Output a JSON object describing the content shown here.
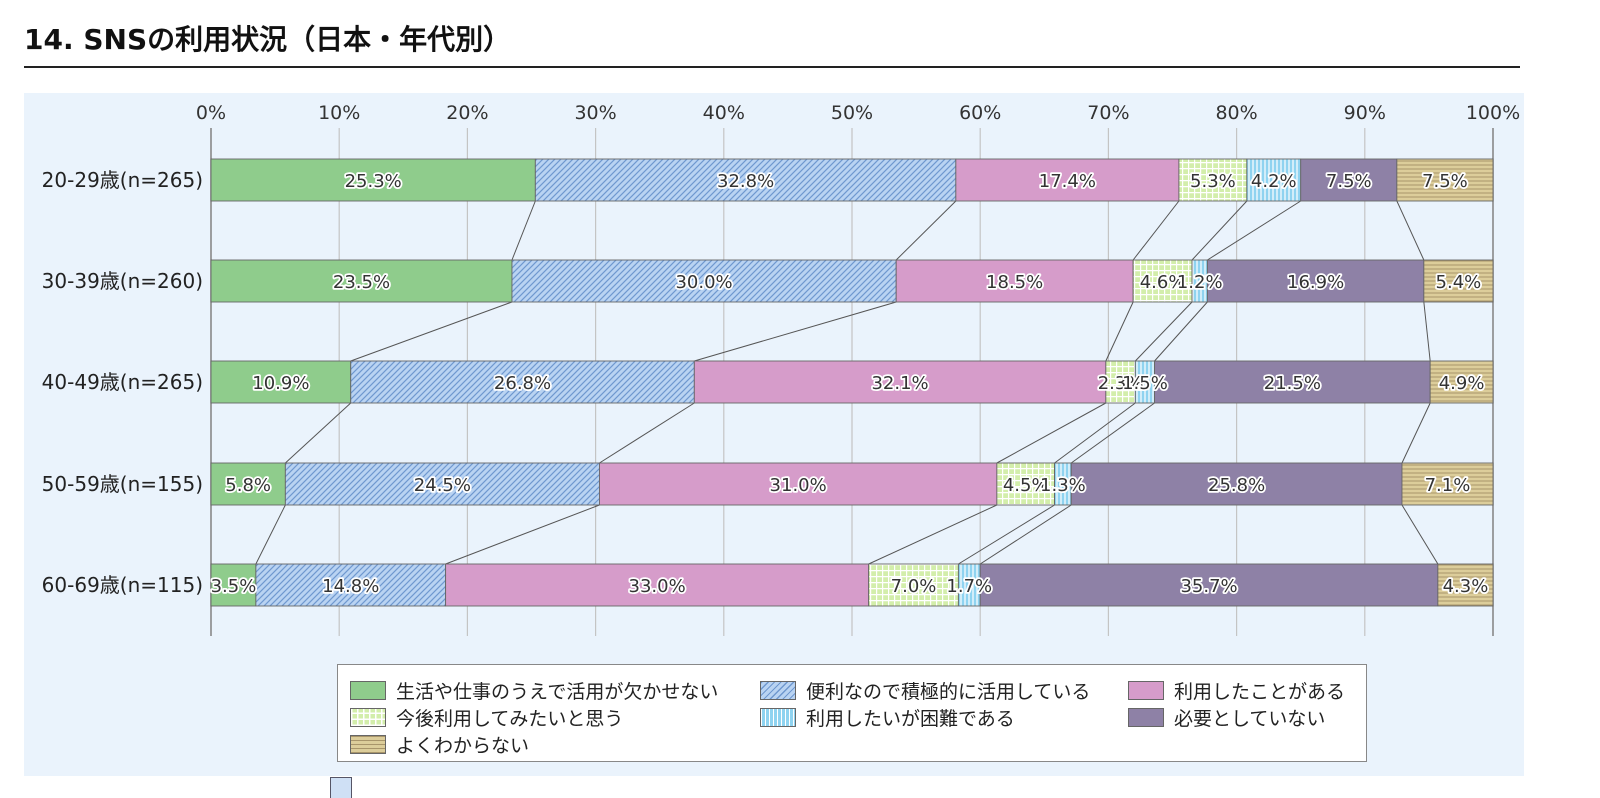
{
  "title": "14. SNSの利用状況（日本・年代別）",
  "colors": {
    "background_panel": "#eaf3fc",
    "gridline": "#c4c4c4",
    "connector": "#555555"
  },
  "chart_data": {
    "type": "bar",
    "orientation": "horizontal",
    "stacked": true,
    "normalized": true,
    "categories": [
      "20-29歳(n=265)",
      "30-39歳(n=260)",
      "40-49歳(n=265)",
      "50-59歳(n=155)",
      "60-69歳(n=115)"
    ],
    "xlim": [
      0,
      100
    ],
    "x_tick_labels": [
      "0%",
      "10%",
      "20%",
      "30%",
      "40%",
      "50%",
      "60%",
      "70%",
      "80%",
      "90%",
      "100%"
    ],
    "grid": true,
    "connector_lines": true,
    "legend_position": "bottom",
    "series": [
      {
        "name": "生活や仕事のうえで活用が欠かせない",
        "values": [
          25.3,
          23.5,
          10.9,
          5.8,
          3.5
        ],
        "labels": [
          "25.3%",
          "23.5%",
          "10.9%",
          "5.8%",
          "3.5%"
        ],
        "color": "#8fcc8c",
        "pattern": "solid"
      },
      {
        "name": "便利なので積極的に活用している",
        "values": [
          32.8,
          30.0,
          26.8,
          24.5,
          14.8
        ],
        "labels": [
          "32.8%",
          "30.0%",
          "26.8%",
          "24.5%",
          "14.8%"
        ],
        "color": "#b9d3f2",
        "pattern": "diagonal"
      },
      {
        "name": "利用したことがある",
        "values": [
          17.4,
          18.5,
          32.1,
          31.0,
          33.0
        ],
        "labels": [
          "17.4%",
          "18.5%",
          "32.1%",
          "31.0%",
          "33.0%"
        ],
        "color": "#d69cca",
        "pattern": "solid"
      },
      {
        "name": "今後利用してみたいと思う",
        "values": [
          5.3,
          4.6,
          2.3,
          4.5,
          7.0
        ],
        "labels": [
          "5.3%",
          "4.6%",
          "2.3%",
          "4.5%",
          "7.0%"
        ],
        "color": "#d3eeab",
        "pattern": "grid"
      },
      {
        "name": "利用したいが困難である",
        "values": [
          4.2,
          1.2,
          1.5,
          1.3,
          1.7
        ],
        "labels": [
          "4.2%",
          "1.2%",
          "1.5%",
          "1.3%",
          "1.7%"
        ],
        "color": "#8fd3f0",
        "pattern": "vertical"
      },
      {
        "name": "必要としていない",
        "values": [
          7.5,
          16.9,
          21.5,
          25.8,
          35.7
        ],
        "labels": [
          "7.5%",
          "16.9%",
          "21.5%",
          "25.8%",
          "35.7%"
        ],
        "color": "#8e81a6",
        "pattern": "solid"
      },
      {
        "name": "よくわからない",
        "values": [
          7.5,
          5.4,
          4.9,
          7.1,
          4.3
        ],
        "labels": [
          "7.5%",
          "5.4%",
          "4.9%",
          "7.1%",
          "4.3%"
        ],
        "color": "#dccd9a",
        "pattern": "horizontal"
      }
    ]
  }
}
